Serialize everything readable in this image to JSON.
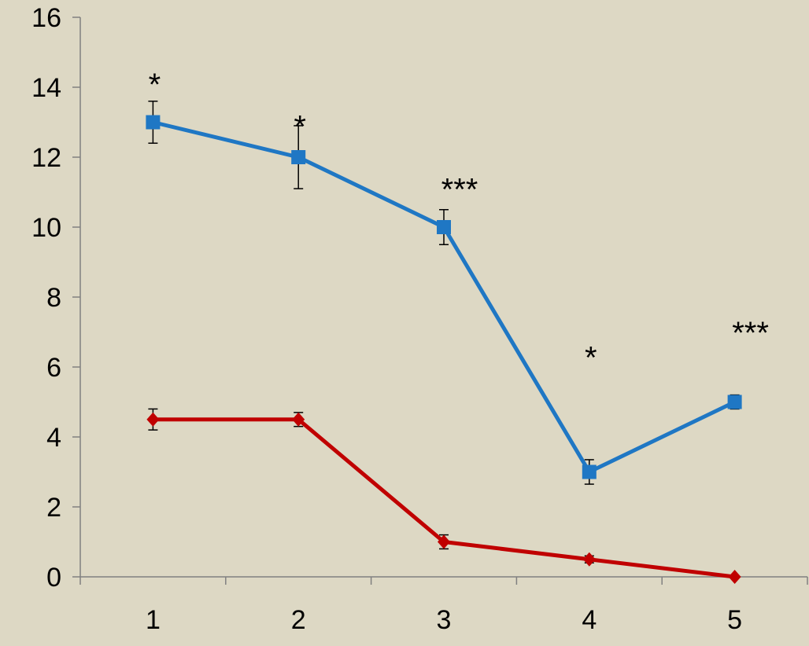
{
  "chart_data": {
    "type": "line",
    "title": "",
    "xlabel": "",
    "ylabel": "",
    "categories": [
      "1",
      "2",
      "3",
      "4",
      "5"
    ],
    "x": [
      1,
      2,
      3,
      4,
      5
    ],
    "ylim": [
      0,
      16
    ],
    "y_ticks": [
      0,
      2,
      4,
      6,
      8,
      10,
      12,
      14,
      16
    ],
    "grid": false,
    "legend": "none",
    "series": [
      {
        "color": "#1F77C4",
        "marker": "square",
        "values": [
          13,
          12,
          10,
          3,
          5
        ],
        "errors": [
          0.6,
          0.9,
          0.5,
          0.35,
          0.2
        ]
      },
      {
        "color": "#C00000",
        "marker": "diamond",
        "values": [
          4.5,
          4.5,
          1,
          0.5,
          0
        ],
        "errors": [
          0.3,
          0.2,
          0.2,
          0.1,
          0
        ]
      }
    ],
    "annotations": [
      {
        "x": 1,
        "y": 14.4,
        "text": "*"
      },
      {
        "x": 2,
        "y": 13.2,
        "text": "*"
      },
      {
        "x": 3,
        "y": 11.4,
        "text": "***"
      },
      {
        "x": 4,
        "y": 6.6,
        "text": "*"
      },
      {
        "x": 5,
        "y": 7.3,
        "text": "***"
      }
    ],
    "colors": {
      "background": "#DDD8C4",
      "axis": "#808080"
    }
  }
}
